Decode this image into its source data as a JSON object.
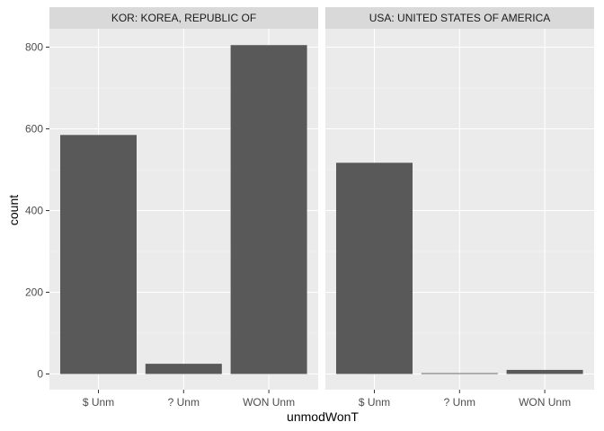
{
  "chart_data": {
    "type": "bar",
    "xlabel": "unmodWonT",
    "ylabel": "count",
    "categories": [
      "$ Unm",
      "? Unm",
      "WON Unm"
    ],
    "ylim": [
      0,
      850
    ],
    "yticks": [
      0,
      200,
      400,
      600,
      800
    ],
    "grid": true,
    "bar_color": "#595959",
    "panel_bg": "#ebebeb",
    "strip_bg": "#d9d9d9",
    "panels": [
      {
        "label": "KOR: KOREA, REPUBLIC OF",
        "values": [
          585,
          25,
          805
        ]
      },
      {
        "label": "USA: UNITED STATES OF AMERICA",
        "values": [
          517,
          2,
          10
        ]
      }
    ]
  }
}
